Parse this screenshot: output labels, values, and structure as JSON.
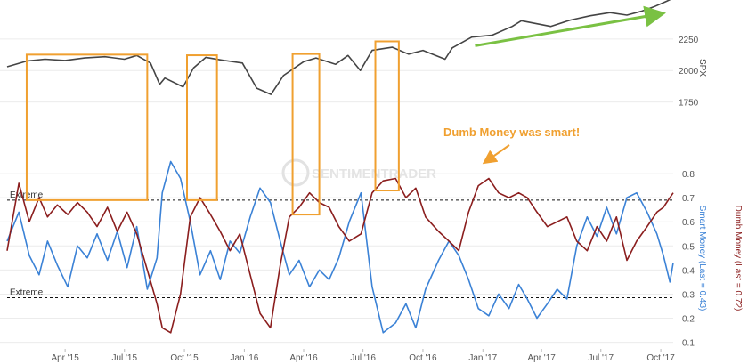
{
  "chart_data": [
    {
      "type": "line",
      "panel": "top",
      "ylabel": "SPX",
      "ylim": [
        1500,
        2560
      ],
      "yticks": [
        1750,
        2000,
        2250
      ],
      "series": [
        {
          "name": "SPX",
          "color": "#444444",
          "x": [
            "2015-01-02",
            "2015-02-01",
            "2015-03-01",
            "2015-04-01",
            "2015-05-01",
            "2015-06-01",
            "2015-07-01",
            "2015-07-20",
            "2015-08-10",
            "2015-08-24",
            "2015-09-01",
            "2015-09-29",
            "2015-10-15",
            "2015-11-03",
            "2015-12-01",
            "2015-12-29",
            "2016-01-20",
            "2016-02-11",
            "2016-03-01",
            "2016-04-01",
            "2016-04-20",
            "2016-05-20",
            "2016-06-08",
            "2016-06-27",
            "2016-07-15",
            "2016-08-15",
            "2016-09-09",
            "2016-10-01",
            "2016-11-04",
            "2016-11-15",
            "2016-12-15",
            "2017-01-15",
            "2017-02-15",
            "2017-03-01",
            "2017-04-15",
            "2017-05-15",
            "2017-06-15",
            "2017-07-15",
            "2017-08-10",
            "2017-09-01",
            "2017-09-20",
            "2017-10-10",
            "2017-10-20"
          ],
          "values": [
            2030,
            2075,
            2090,
            2080,
            2100,
            2110,
            2090,
            2120,
            2060,
            1890,
            1940,
            1870,
            2020,
            2105,
            2080,
            2060,
            1860,
            1810,
            1960,
            2070,
            2100,
            2050,
            2120,
            2000,
            2160,
            2185,
            2130,
            2160,
            2090,
            2180,
            2265,
            2280,
            2350,
            2395,
            2350,
            2400,
            2435,
            2460,
            2440,
            2470,
            2505,
            2550,
            2575
          ]
        }
      ]
    },
    {
      "type": "line",
      "panel": "bottom",
      "x_tick_labels": [
        "Apr '15",
        "Jul '15",
        "Oct '15",
        "Jan '16",
        "Apr '16",
        "Jul '16",
        "Oct '16",
        "Jan '17",
        "Apr '17",
        "Jul '17",
        "Oct '17"
      ],
      "ylim": [
        0.08,
        0.9
      ],
      "yticks": [
        0.1,
        0.2,
        0.3,
        0.4,
        0.5,
        0.6,
        0.7,
        0.8
      ],
      "ytick_labels": [
        "0.1",
        "0.2",
        "0.3",
        "0.4",
        "0.5",
        "0.6",
        "0.7",
        "0.8"
      ],
      "ylabel_left": "Smart Money (Last = 0.43)",
      "ylabel_right": "Dumb Money (Last = 0.72)",
      "series": [
        {
          "name": "Smart Money",
          "color": "#3b82d6",
          "x": [
            "2015-01-02",
            "2015-01-20",
            "2015-02-05",
            "2015-02-20",
            "2015-03-05",
            "2015-03-20",
            "2015-04-05",
            "2015-04-20",
            "2015-05-05",
            "2015-05-20",
            "2015-06-05",
            "2015-06-20",
            "2015-07-05",
            "2015-07-20",
            "2015-08-05",
            "2015-08-20",
            "2015-08-28",
            "2015-09-10",
            "2015-09-25",
            "2015-10-10",
            "2015-10-25",
            "2015-11-10",
            "2015-11-25",
            "2015-12-10",
            "2015-12-25",
            "2016-01-10",
            "2016-01-25",
            "2016-02-10",
            "2016-02-25",
            "2016-03-10",
            "2016-03-25",
            "2016-04-10",
            "2016-04-25",
            "2016-05-10",
            "2016-05-25",
            "2016-06-10",
            "2016-06-28",
            "2016-07-15",
            "2016-08-01",
            "2016-08-20",
            "2016-09-05",
            "2016-09-20",
            "2016-10-05",
            "2016-10-25",
            "2016-11-10",
            "2016-11-25",
            "2016-12-10",
            "2016-12-25",
            "2017-01-10",
            "2017-01-25",
            "2017-02-10",
            "2017-02-25",
            "2017-03-10",
            "2017-03-25",
            "2017-04-10",
            "2017-04-25",
            "2017-05-10",
            "2017-05-25",
            "2017-06-10",
            "2017-06-25",
            "2017-07-10",
            "2017-07-25",
            "2017-08-10",
            "2017-08-25",
            "2017-09-10",
            "2017-09-25",
            "2017-10-05",
            "2017-10-15",
            "2017-10-20"
          ],
          "values": [
            0.52,
            0.64,
            0.46,
            0.38,
            0.52,
            0.42,
            0.33,
            0.5,
            0.45,
            0.55,
            0.44,
            0.56,
            0.41,
            0.58,
            0.32,
            0.45,
            0.72,
            0.85,
            0.78,
            0.6,
            0.38,
            0.48,
            0.36,
            0.52,
            0.47,
            0.62,
            0.74,
            0.68,
            0.52,
            0.38,
            0.44,
            0.33,
            0.4,
            0.36,
            0.45,
            0.6,
            0.72,
            0.33,
            0.14,
            0.18,
            0.26,
            0.16,
            0.32,
            0.44,
            0.52,
            0.46,
            0.36,
            0.24,
            0.21,
            0.3,
            0.24,
            0.34,
            0.28,
            0.2,
            0.26,
            0.32,
            0.28,
            0.5,
            0.62,
            0.54,
            0.66,
            0.55,
            0.7,
            0.72,
            0.64,
            0.55,
            0.46,
            0.35,
            0.43
          ]
        },
        {
          "name": "Dumb Money",
          "color": "#8b1e1e",
          "x": [
            "2015-01-02",
            "2015-01-20",
            "2015-02-05",
            "2015-02-20",
            "2015-03-05",
            "2015-03-20",
            "2015-04-05",
            "2015-04-20",
            "2015-05-05",
            "2015-05-20",
            "2015-06-05",
            "2015-06-20",
            "2015-07-05",
            "2015-07-20",
            "2015-08-05",
            "2015-08-20",
            "2015-08-28",
            "2015-09-10",
            "2015-09-25",
            "2015-10-10",
            "2015-10-25",
            "2015-11-10",
            "2015-11-25",
            "2015-12-10",
            "2015-12-25",
            "2016-01-10",
            "2016-01-25",
            "2016-02-10",
            "2016-02-25",
            "2016-03-10",
            "2016-03-25",
            "2016-04-10",
            "2016-04-25",
            "2016-05-10",
            "2016-05-25",
            "2016-06-10",
            "2016-06-28",
            "2016-07-15",
            "2016-08-01",
            "2016-08-20",
            "2016-09-05",
            "2016-09-20",
            "2016-10-05",
            "2016-10-25",
            "2016-11-10",
            "2016-11-25",
            "2016-12-10",
            "2016-12-25",
            "2017-01-10",
            "2017-01-25",
            "2017-02-10",
            "2017-02-25",
            "2017-03-10",
            "2017-03-25",
            "2017-04-10",
            "2017-04-25",
            "2017-05-10",
            "2017-05-25",
            "2017-06-10",
            "2017-06-25",
            "2017-07-10",
            "2017-07-25",
            "2017-08-10",
            "2017-08-25",
            "2017-09-10",
            "2017-09-25",
            "2017-10-05",
            "2017-10-15",
            "2017-10-20"
          ],
          "values": [
            0.48,
            0.76,
            0.6,
            0.7,
            0.62,
            0.67,
            0.63,
            0.68,
            0.64,
            0.58,
            0.66,
            0.56,
            0.64,
            0.55,
            0.4,
            0.26,
            0.16,
            0.14,
            0.3,
            0.62,
            0.7,
            0.63,
            0.56,
            0.48,
            0.55,
            0.38,
            0.22,
            0.16,
            0.42,
            0.62,
            0.66,
            0.72,
            0.68,
            0.66,
            0.58,
            0.52,
            0.55,
            0.72,
            0.77,
            0.78,
            0.7,
            0.74,
            0.62,
            0.56,
            0.52,
            0.48,
            0.64,
            0.75,
            0.78,
            0.72,
            0.7,
            0.72,
            0.7,
            0.64,
            0.58,
            0.6,
            0.62,
            0.52,
            0.48,
            0.58,
            0.52,
            0.62,
            0.44,
            0.52,
            0.58,
            0.64,
            0.66,
            0.7,
            0.72
          ]
        }
      ],
      "reference_lines": [
        {
          "label": "Extreme",
          "value": 0.69
        },
        {
          "label": "Extreme",
          "value": 0.285
        }
      ]
    }
  ],
  "annotations": {
    "callout": "Dumb Money was smart!",
    "highlight_boxes": [
      {
        "x_start": "2015-02-01",
        "x_end": "2015-08-05"
      },
      {
        "x_start": "2015-10-05",
        "x_end": "2015-11-20"
      },
      {
        "x_start": "2016-03-15",
        "x_end": "2016-04-25"
      },
      {
        "x_start": "2016-07-20",
        "x_end": "2016-08-25"
      }
    ],
    "trend_arrow": {
      "x_start": "2016-12-20",
      "x_end": "2017-10-01"
    }
  },
  "watermark": "SENTIMENTRADER",
  "colors": {
    "highlight": "#f0a030",
    "trend_arrow": "#7ac143",
    "callout": "#f0a030"
  }
}
